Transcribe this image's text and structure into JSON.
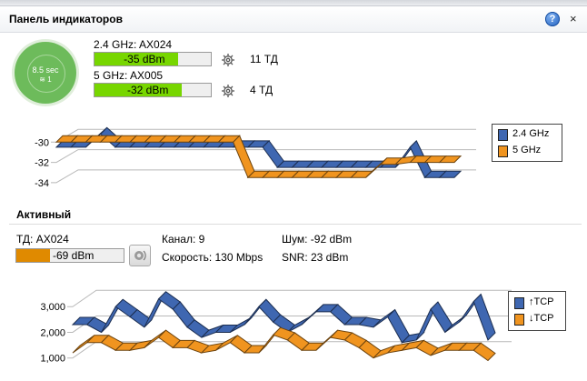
{
  "panel": {
    "title": "Панель индикаторов",
    "help_symbol": "?",
    "close_symbol": "×"
  },
  "timer": {
    "label": "8.5 sec",
    "wifi_count": "1"
  },
  "bands": [
    {
      "label": "2.4 GHz: AX024",
      "signal": "-35 dBm",
      "fill_fraction": 0.72,
      "ap_count": "11 ТД",
      "color": "#77d600"
    },
    {
      "label": "5 GHz: AX005",
      "signal": "-32 dBm",
      "fill_fraction": 0.75,
      "ap_count": "4 ТД",
      "color": "#77d600"
    }
  ],
  "signal_chart": {
    "legend": [
      "2.4 GHz",
      "5 GHz"
    ],
    "colors": [
      "#3f67b1",
      "#f0941f"
    ]
  },
  "active": {
    "title": "Активный",
    "ap": "ТД: AX024",
    "signal": "-69 dBm",
    "signal_fill_fraction": 0.31,
    "signal_color": "#e08a00",
    "channel": "Канал: 9",
    "speed": "Скорость: 130 Mbps",
    "noise": "Шум: -92 dBm",
    "snr": "SNR: 23 dBm"
  },
  "chart_data": [
    {
      "type": "line",
      "y_ticks": [
        "-30",
        "-32",
        "-34"
      ],
      "ylim": [
        -35,
        -28
      ],
      "grid": true,
      "legend_position": "right",
      "x": [
        0,
        1,
        2,
        3,
        4,
        5,
        6,
        7,
        8,
        9,
        10,
        11,
        12,
        13,
        14,
        15,
        16,
        17,
        18,
        19,
        20,
        21,
        22,
        23,
        24,
        25,
        26,
        27
      ],
      "series": [
        {
          "name": "2.4 GHz",
          "values": [
            -30.5,
            -30.5,
            -30.5,
            -29.2,
            -30.5,
            -30.5,
            -30.5,
            -30.5,
            -30.5,
            -30.5,
            -30.5,
            -30.5,
            -30.5,
            -30.5,
            -30.5,
            -32.5,
            -32.5,
            -32.5,
            -32.5,
            -32.5,
            -32.5,
            -32.5,
            -32.5,
            -32.5,
            -30.5,
            -33.5,
            -33.5,
            -33.5
          ]
        },
        {
          "name": "5 GHz",
          "values": [
            -30.0,
            -30.0,
            -30.0,
            -30.0,
            -30.0,
            -30.0,
            -30.0,
            -30.0,
            -30.0,
            -30.0,
            -30.0,
            -30.0,
            -30.0,
            -33.5,
            -33.5,
            -33.5,
            -33.5,
            -33.5,
            -33.5,
            -33.5,
            -33.5,
            -33.5,
            -32.2,
            -32.2,
            -32.0,
            -32.0,
            -32.0,
            -32.0
          ]
        }
      ]
    },
    {
      "type": "line",
      "y_ticks": [
        "3,000",
        "2,000",
        "1,000"
      ],
      "ylim": [
        600,
        4000
      ],
      "grid": true,
      "legend_position": "right",
      "x": [
        0,
        1,
        2,
        3,
        4,
        5,
        6,
        7,
        8,
        9,
        10,
        11,
        12,
        13,
        14,
        15,
        16,
        17,
        18,
        19,
        20,
        21,
        22,
        23,
        24,
        25,
        26,
        27,
        28,
        29
      ],
      "series": [
        {
          "name": "↑TCP",
          "values": [
            2300,
            2300,
            2000,
            3000,
            2600,
            2200,
            3300,
            2900,
            2200,
            1800,
            2000,
            2000,
            2300,
            3000,
            2400,
            2000,
            2300,
            2800,
            2800,
            2300,
            2300,
            2200,
            2600,
            1600,
            1700,
            2900,
            2000,
            2400,
            3200,
            1700
          ]
        },
        {
          "name": "↓TCP",
          "values": [
            1200,
            1600,
            1600,
            1300,
            1300,
            1400,
            1800,
            1400,
            1400,
            1200,
            1300,
            1600,
            1200,
            1200,
            1900,
            1700,
            1300,
            1300,
            1800,
            1700,
            1400,
            1000,
            1200,
            1300,
            1400,
            1100,
            1300,
            1300,
            1300,
            900
          ]
        }
      ]
    }
  ]
}
